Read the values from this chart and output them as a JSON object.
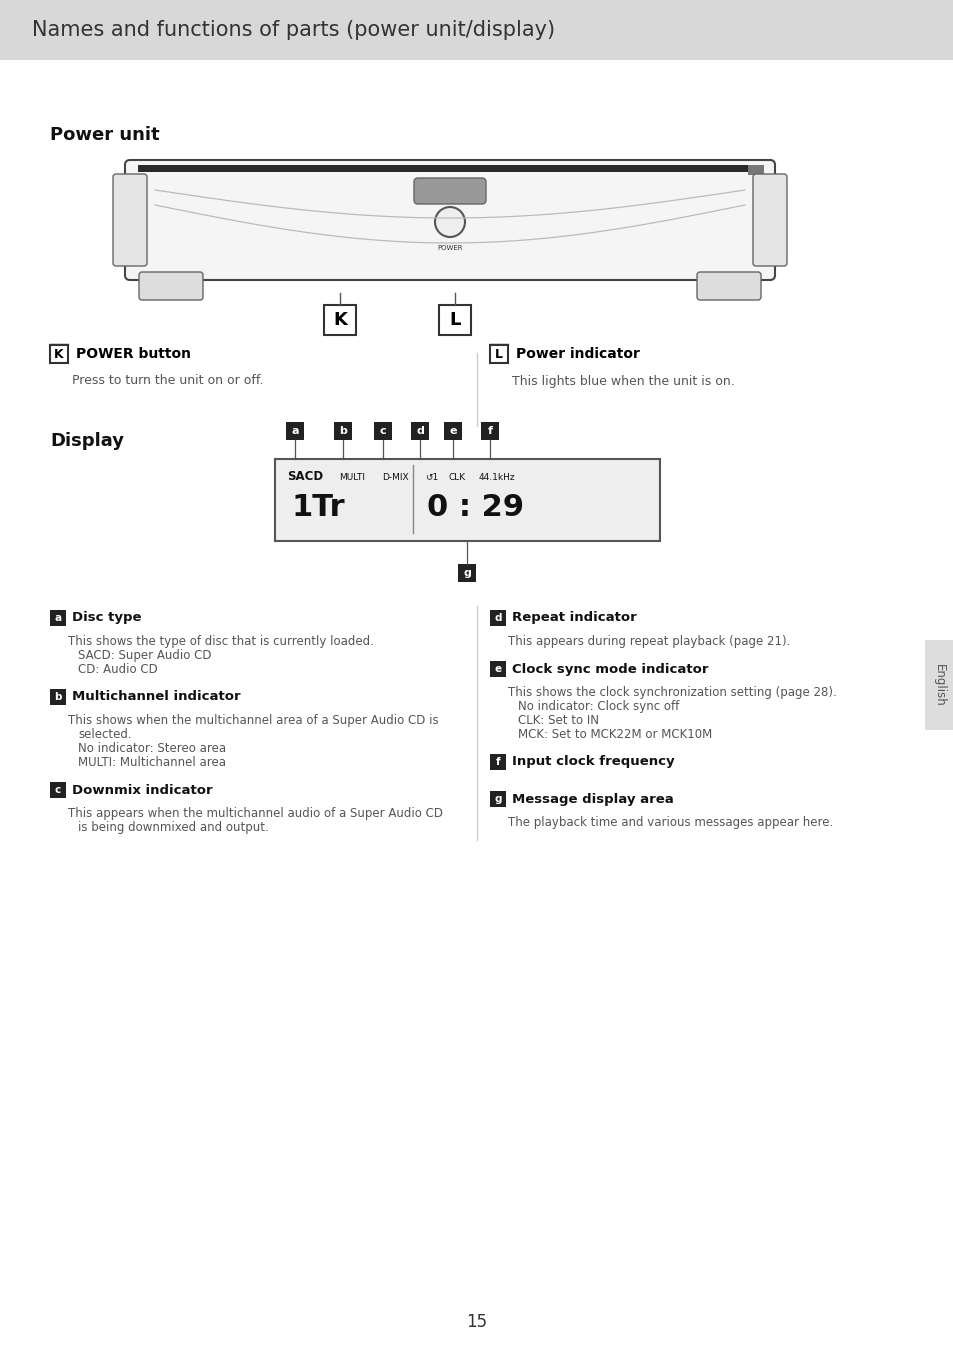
{
  "title": "Names and functions of parts (power unit/display)",
  "title_fontsize": 16,
  "bg_color": "#ffffff",
  "header_bg": "#d8d8d8",
  "section_power_unit": "Power unit",
  "section_display": "Display",
  "label_k": "K",
  "label_l": "L",
  "label_k_title": "POWER button",
  "label_k_desc": "Press to turn the unit on or off.",
  "label_l_title": "Power indicator",
  "label_l_desc": "This lights blue when the unit is on.",
  "display_labels": [
    "a",
    "b",
    "c",
    "d",
    "e",
    "f"
  ],
  "display_label_g": "g",
  "desc_a_title": "Disc type",
  "desc_a_lines": [
    "This shows the type of disc that is currently loaded.",
    "SACD: Super Audio CD",
    "CD: Audio CD"
  ],
  "desc_b_title": "Multichannel indicator",
  "desc_b_lines": [
    "This shows when the multichannel area of a Super Audio CD is",
    "selected.",
    "No indicator: Stereo area",
    "MULTI: Multichannel area"
  ],
  "desc_c_title": "Downmix indicator",
  "desc_c_lines": [
    "This appears when the multichannel audio of a Super Audio CD",
    "is being downmixed and output."
  ],
  "desc_d_title": "Repeat indicator",
  "desc_d_lines": [
    "This appears during repeat playback (page 21)."
  ],
  "desc_e_title": "Clock sync mode indicator",
  "desc_e_lines": [
    "This shows the clock synchronization setting (page 28).",
    "No indicator: Clock sync off",
    "CLK: Set to IN",
    "MCK: Set to MCK22M or MCK10M"
  ],
  "desc_f_title": "Input clock frequency",
  "desc_f_lines": [],
  "desc_g_title": "Message display area",
  "desc_g_lines": [
    "The playback time and various messages appear here."
  ],
  "page_number": "15",
  "sidebar_text": "English"
}
